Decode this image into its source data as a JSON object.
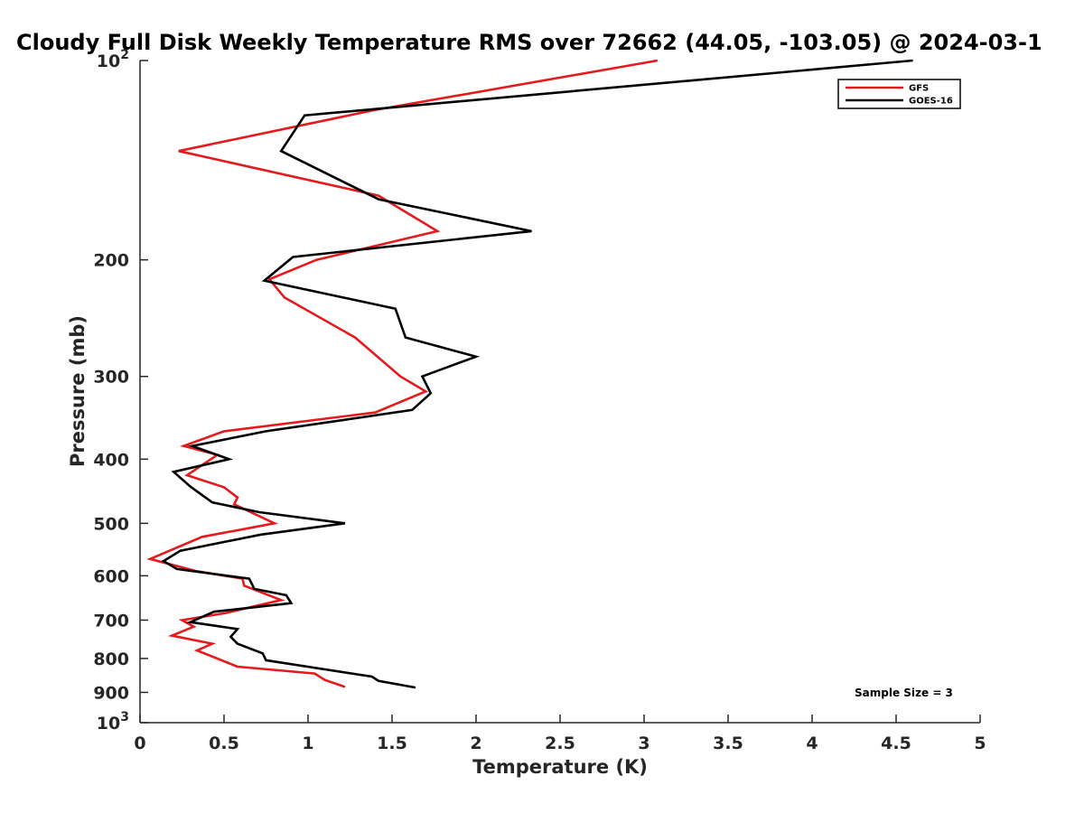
{
  "chart_data": {
    "type": "line",
    "title": "Cloudy Full Disk Weekly Temperature RMS over 72662 (44.05, -103.05) @ 2024-03-1",
    "xlabel": "Temperature (K)",
    "ylabel": "Pressure (mb)",
    "xlim": [
      0,
      5
    ],
    "ylim": [
      100,
      1000
    ],
    "y_scale": "log",
    "y_reversed": true,
    "grid": false,
    "legend_position": "top-right",
    "x_ticks": [
      0,
      0.5,
      1,
      1.5,
      2,
      2.5,
      3,
      3.5,
      4,
      4.5,
      5
    ],
    "x_tick_labels": [
      "0",
      "0.5",
      "1",
      "1.5",
      "2",
      "2.5",
      "3",
      "3.5",
      "4",
      "4.5",
      "5"
    ],
    "y_ticks": [
      100,
      200,
      300,
      400,
      500,
      600,
      700,
      800,
      900,
      1000
    ],
    "y_tick_labels": [
      "10^2",
      "200",
      "300",
      "400",
      "500",
      "600",
      "700",
      "800",
      "900",
      "10^3"
    ],
    "annotation": "Sample Size = 3",
    "series": [
      {
        "name": "GFS",
        "color": "#e41a1c",
        "points": [
          [
            3.08,
            100
          ],
          [
            1.38,
            119
          ],
          [
            0.23,
            137
          ],
          [
            1.42,
            160
          ],
          [
            1.77,
            181
          ],
          [
            1.05,
            200
          ],
          [
            0.77,
            214
          ],
          [
            0.86,
            228
          ],
          [
            1.28,
            262
          ],
          [
            1.55,
            300
          ],
          [
            1.7,
            316
          ],
          [
            1.4,
            340
          ],
          [
            0.5,
            363
          ],
          [
            0.26,
            382
          ],
          [
            0.46,
            394
          ],
          [
            0.28,
            423
          ],
          [
            0.5,
            441
          ],
          [
            0.58,
            457
          ],
          [
            0.56,
            468
          ],
          [
            0.8,
            500
          ],
          [
            0.37,
            524
          ],
          [
            0.06,
            566
          ],
          [
            0.33,
            590
          ],
          [
            0.61,
            606
          ],
          [
            0.62,
            621
          ],
          [
            0.84,
            653
          ],
          [
            0.51,
            683
          ],
          [
            0.25,
            700
          ],
          [
            0.32,
            716
          ],
          [
            0.19,
            739
          ],
          [
            0.43,
            760
          ],
          [
            0.34,
            778
          ],
          [
            0.58,
            823
          ],
          [
            1.04,
            843
          ],
          [
            1.1,
            862
          ],
          [
            1.22,
            883
          ]
        ]
      },
      {
        "name": "GOES-16",
        "color": "#000000",
        "points": [
          [
            4.6,
            100
          ],
          [
            0.98,
            121
          ],
          [
            0.84,
            137
          ],
          [
            1.42,
            162
          ],
          [
            2.33,
            181
          ],
          [
            0.91,
            198
          ],
          [
            0.74,
            215
          ],
          [
            1.52,
            237
          ],
          [
            1.58,
            262
          ],
          [
            2.0,
            280
          ],
          [
            1.68,
            300
          ],
          [
            1.73,
            318
          ],
          [
            1.62,
            337
          ],
          [
            0.75,
            363
          ],
          [
            0.31,
            382
          ],
          [
            0.53,
            400
          ],
          [
            0.2,
            418
          ],
          [
            0.3,
            440
          ],
          [
            0.43,
            465
          ],
          [
            0.71,
            481
          ],
          [
            1.22,
            500
          ],
          [
            0.72,
            520
          ],
          [
            0.24,
            550
          ],
          [
            0.14,
            570
          ],
          [
            0.22,
            586
          ],
          [
            0.65,
            606
          ],
          [
            0.68,
            628
          ],
          [
            0.87,
            642
          ],
          [
            0.9,
            660
          ],
          [
            0.44,
            680
          ],
          [
            0.3,
            705
          ],
          [
            0.58,
            722
          ],
          [
            0.54,
            742
          ],
          [
            0.58,
            760
          ],
          [
            0.73,
            786
          ],
          [
            0.75,
            805
          ],
          [
            1.38,
            852
          ],
          [
            1.42,
            865
          ],
          [
            1.64,
            885
          ]
        ]
      }
    ]
  }
}
